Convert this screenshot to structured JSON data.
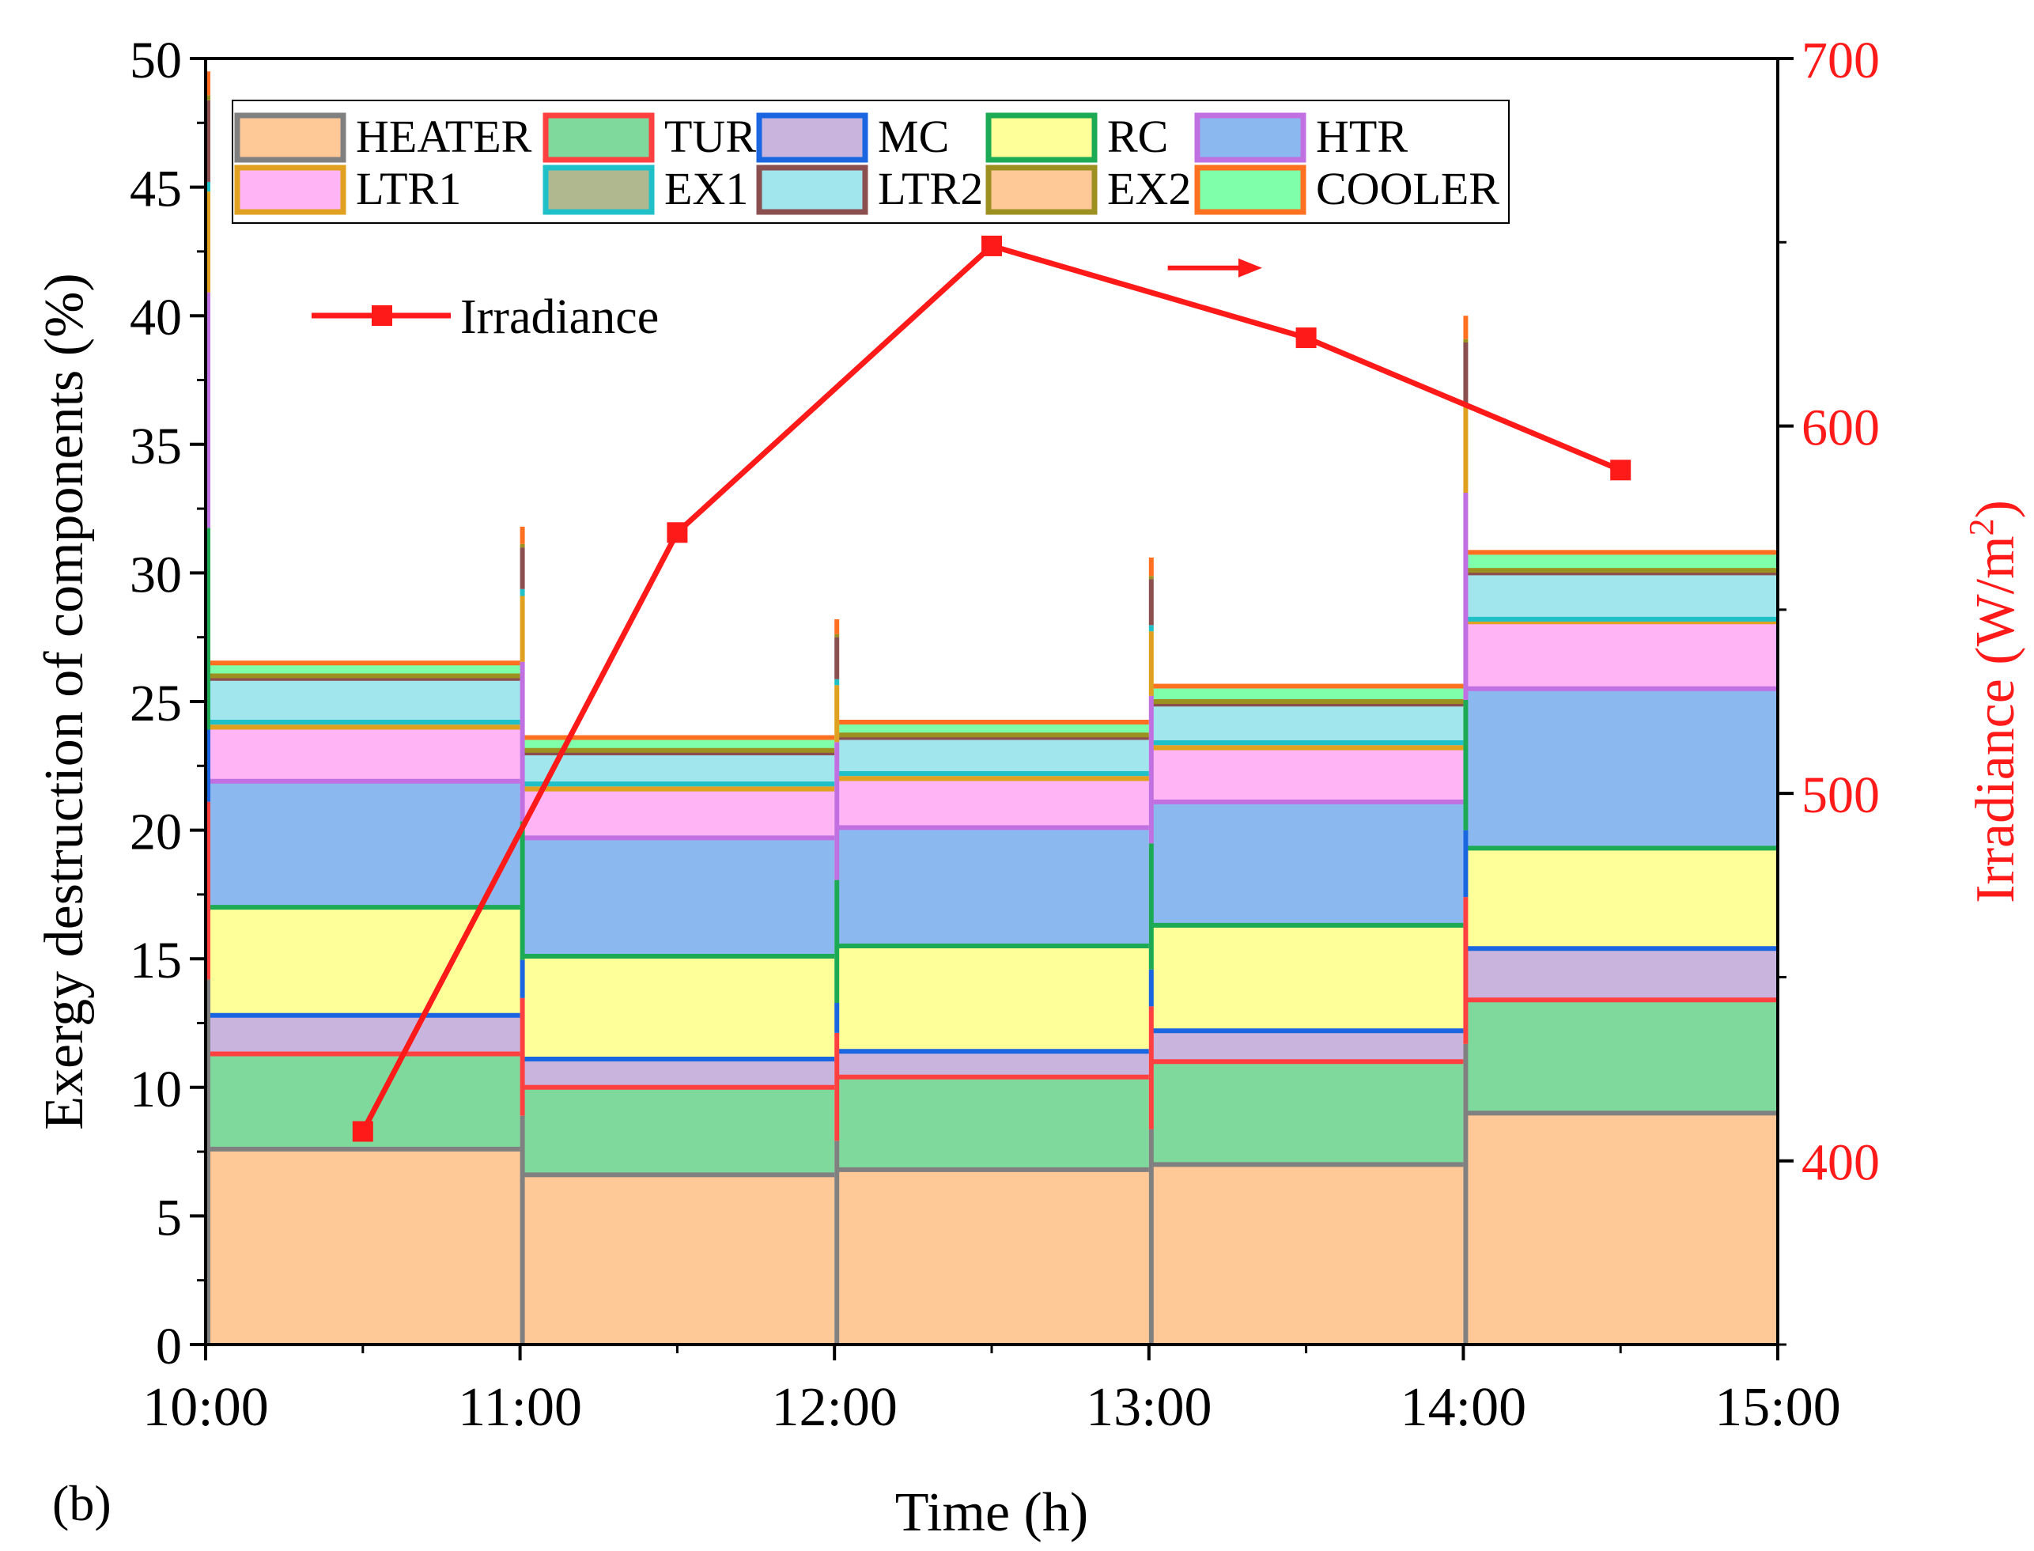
{
  "chart_data": {
    "type": "area",
    "panel_label": "(b)",
    "xlabel": "Time (h)",
    "ylabel": "Exergy destruction of components (%)",
    "y2label": "Irradiance (W/m",
    "y2label_sup": "2",
    "y2label_end": ")",
    "xlim": [
      0,
      5
    ],
    "ylim": [
      0,
      50
    ],
    "y2lim": [
      350,
      700
    ],
    "x_ticks": [
      {
        "value": 0,
        "label": "10:00"
      },
      {
        "value": 1,
        "label": "11:00"
      },
      {
        "value": 2,
        "label": "12:00"
      },
      {
        "value": 3,
        "label": "13:00"
      },
      {
        "value": 4,
        "label": "14:00"
      },
      {
        "value": 5,
        "label": "15:00"
      }
    ],
    "y_ticks": [
      0,
      5,
      10,
      15,
      20,
      25,
      30,
      35,
      40,
      45,
      50
    ],
    "y2_ticks": [
      400,
      500,
      600,
      700
    ],
    "segments": [
      {
        "start": 0,
        "end": 1,
        "label": "10:00-11:00"
      },
      {
        "start": 1,
        "end": 2,
        "label": "11:00-12:00"
      },
      {
        "start": 2,
        "end": 3,
        "label": "12:00-13:00"
      },
      {
        "start": 3,
        "end": 4,
        "label": "13:00-14:00"
      },
      {
        "start": 4,
        "end": 5,
        "label": "14:00-15:00"
      }
    ],
    "series": [
      {
        "name": "HEATER",
        "fill": "#FFC896",
        "line": "#808080",
        "values": [
          7.6,
          6.6,
          6.8,
          7.0,
          9.0
        ]
      },
      {
        "name": "TUR",
        "fill": "#80D99C",
        "line": "#FF4040",
        "values": [
          3.7,
          3.4,
          3.6,
          4.0,
          4.4
        ]
      },
      {
        "name": "MC",
        "fill": "#C8B4DC",
        "line": "#1A66E0",
        "values": [
          1.5,
          1.1,
          1.0,
          1.2,
          2.0
        ]
      },
      {
        "name": "RC",
        "fill": "#FFFF99",
        "line": "#1DAA55",
        "values": [
          4.2,
          4.0,
          4.1,
          4.1,
          3.9
        ]
      },
      {
        "name": "HTR",
        "fill": "#8CB8F0",
        "line": "#C070E0",
        "values": [
          4.9,
          4.6,
          4.6,
          4.8,
          6.2
        ]
      },
      {
        "name": "LTR1",
        "fill": "#FFB4F5",
        "line": "#E0A020",
        "values": [
          2.1,
          1.9,
          1.9,
          2.1,
          2.6
        ]
      },
      {
        "name": "EX1",
        "fill": "#B0B890",
        "line": "#20C0C8",
        "values": [
          0.2,
          0.2,
          0.2,
          0.2,
          0.1
        ]
      },
      {
        "name": "LTR2",
        "fill": "#A0E6EC",
        "line": "#8B4F4F",
        "values": [
          1.7,
          1.2,
          1.4,
          1.5,
          1.8
        ]
      },
      {
        "name": "EX2",
        "fill": "#FFC896",
        "line": "#9C9020",
        "values": [
          0.1,
          0.1,
          0.1,
          0.1,
          0.1
        ]
      },
      {
        "name": "COOLER",
        "fill": "#80FFAA",
        "line": "#FF7020",
        "values": [
          0.5,
          0.5,
          0.5,
          0.6,
          0.7
        ]
      }
    ],
    "irradiance": {
      "name": "Irradiance",
      "color": "#FF1A1A",
      "x": [
        0.5,
        1.5,
        2.5,
        3.5,
        4.5
      ],
      "y": [
        408,
        571,
        649,
        624,
        588
      ]
    },
    "annotation_arrow": {
      "x_from": 3.06,
      "x_to": 3.36,
      "y2": 643,
      "color": "#FF1A1A",
      "points_to": "right axis"
    }
  }
}
